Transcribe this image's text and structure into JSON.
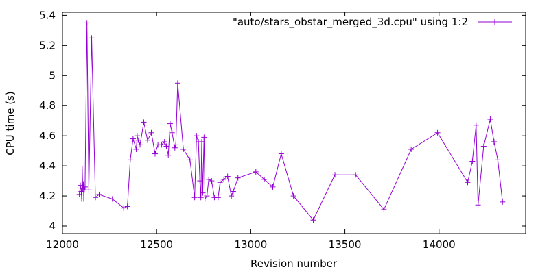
{
  "chart_data": {
    "type": "line",
    "xlabel": "Revision number",
    "ylabel": "CPU time (s)",
    "xlim": [
      12000,
      14460
    ],
    "ylim": [
      3.95,
      5.42
    ],
    "x_ticks": [
      12000,
      12500,
      13000,
      13500,
      14000
    ],
    "y_ticks": [
      4,
      4.2,
      4.4,
      4.6,
      4.8,
      5,
      5.2,
      5.4
    ],
    "grid": false,
    "legend_position": "top-right",
    "colors": {
      "series": "#9400d3",
      "axis": "#000000",
      "background": "#ffffff"
    },
    "series": [
      {
        "name": "\"auto/stars_obstar_merged_3d.cpu\" using 1:2",
        "marker": "plus",
        "points": [
          [
            12090,
            4.21
          ],
          [
            12095,
            4.27
          ],
          [
            12100,
            4.23
          ],
          [
            12102,
            4.18
          ],
          [
            12105,
            4.38
          ],
          [
            12108,
            4.25
          ],
          [
            12111,
            4.28
          ],
          [
            12113,
            4.18
          ],
          [
            12116,
            4.24
          ],
          [
            12120,
            4.26
          ],
          [
            12130,
            5.35
          ],
          [
            12140,
            4.24
          ],
          [
            12155,
            5.25
          ],
          [
            12175,
            4.19
          ],
          [
            12195,
            4.21
          ],
          [
            12265,
            4.18
          ],
          [
            12325,
            4.12
          ],
          [
            12345,
            4.13
          ],
          [
            12360,
            4.44
          ],
          [
            12375,
            4.58
          ],
          [
            12392,
            4.51
          ],
          [
            12397,
            4.6
          ],
          [
            12402,
            4.57
          ],
          [
            12412,
            4.54
          ],
          [
            12432,
            4.69
          ],
          [
            12452,
            4.57
          ],
          [
            12472,
            4.62
          ],
          [
            12492,
            4.48
          ],
          [
            12507,
            4.54
          ],
          [
            12527,
            4.54
          ],
          [
            12542,
            4.56
          ],
          [
            12552,
            4.53
          ],
          [
            12562,
            4.47
          ],
          [
            12572,
            4.68
          ],
          [
            12582,
            4.62
          ],
          [
            12597,
            4.52
          ],
          [
            12602,
            4.54
          ],
          [
            12612,
            4.95
          ],
          [
            12642,
            4.51
          ],
          [
            12677,
            4.44
          ],
          [
            12702,
            4.19
          ],
          [
            12712,
            4.6
          ],
          [
            12722,
            4.56
          ],
          [
            12730,
            4.3
          ],
          [
            12735,
            4.19
          ],
          [
            12740,
            4.56
          ],
          [
            12745,
            4.22
          ],
          [
            12752,
            4.59
          ],
          [
            12757,
            4.18
          ],
          [
            12767,
            4.2
          ],
          [
            12777,
            4.31
          ],
          [
            12792,
            4.3
          ],
          [
            12807,
            4.19
          ],
          [
            12827,
            4.19
          ],
          [
            12837,
            4.29
          ],
          [
            12857,
            4.31
          ],
          [
            12877,
            4.33
          ],
          [
            12897,
            4.2
          ],
          [
            12907,
            4.23
          ],
          [
            12932,
            4.32
          ],
          [
            13027,
            4.36
          ],
          [
            13072,
            4.31
          ],
          [
            13117,
            4.26
          ],
          [
            13162,
            4.48
          ],
          [
            13227,
            4.2
          ],
          [
            13332,
            4.04
          ],
          [
            13447,
            4.34
          ],
          [
            13557,
            4.34
          ],
          [
            13707,
            4.11
          ],
          [
            13852,
            4.51
          ],
          [
            13992,
            4.62
          ],
          [
            14152,
            4.29
          ],
          [
            14177,
            4.43
          ],
          [
            14197,
            4.67
          ],
          [
            14207,
            4.14
          ],
          [
            14237,
            4.53
          ],
          [
            14272,
            4.71
          ],
          [
            14292,
            4.56
          ],
          [
            14312,
            4.44
          ],
          [
            14337,
            4.16
          ]
        ]
      }
    ]
  }
}
